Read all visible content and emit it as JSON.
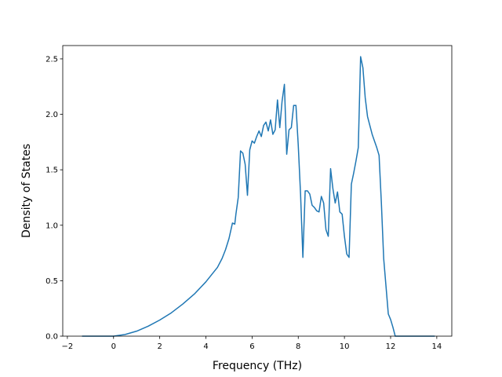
{
  "chart_data": {
    "type": "line",
    "xlabel": "Frequency (THz)",
    "ylabel": "Density of States",
    "xlim": [
      -2.2,
      14.65
    ],
    "ylim": [
      0,
      2.62
    ],
    "xticks": [
      -2,
      0,
      2,
      4,
      6,
      8,
      10,
      12,
      14
    ],
    "xtick_labels": [
      "−2",
      "0",
      "2",
      "4",
      "6",
      "8",
      "10",
      "12",
      "14"
    ],
    "yticks": [
      0.0,
      0.5,
      1.0,
      1.5,
      2.0,
      2.5
    ],
    "ytick_labels": [
      "0.0",
      "0.5",
      "1.0",
      "1.5",
      "2.0",
      "2.5"
    ],
    "grid": false,
    "line_color": "#1f77b4",
    "series": [
      {
        "x": [
          -1.35,
          -0.6,
          0.0,
          0.5,
          1.0,
          1.5,
          2.0,
          2.5,
          3.0,
          3.5,
          4.0,
          4.5,
          4.7,
          4.85,
          5.0,
          5.15,
          5.25,
          5.3,
          5.4,
          5.5,
          5.6,
          5.7,
          5.8,
          5.9,
          6.0,
          6.1,
          6.2,
          6.3,
          6.4,
          6.5,
          6.6,
          6.7,
          6.8,
          6.9,
          7.0,
          7.1,
          7.2,
          7.3,
          7.4,
          7.5,
          7.6,
          7.7,
          7.8,
          7.9,
          8.0,
          8.1,
          8.2,
          8.3,
          8.4,
          8.5,
          8.6,
          8.7,
          8.8,
          8.9,
          9.0,
          9.1,
          9.2,
          9.3,
          9.4,
          9.5,
          9.6,
          9.7,
          9.8,
          9.9,
          10.0,
          10.1,
          10.2,
          10.3,
          10.4,
          10.5,
          10.6,
          10.7,
          10.8,
          10.9,
          11.0,
          11.1,
          11.2,
          11.3,
          11.4,
          11.5,
          11.6,
          11.7,
          11.8,
          11.9,
          12.0,
          12.1,
          12.2,
          12.3,
          12.4,
          12.5,
          12.65,
          12.8,
          13.3,
          13.9
        ],
        "y": [
          0.0,
          0.0,
          0.0,
          0.015,
          0.045,
          0.09,
          0.145,
          0.21,
          0.29,
          0.38,
          0.49,
          0.62,
          0.7,
          0.78,
          0.88,
          1.02,
          1.01,
          1.1,
          1.25,
          1.67,
          1.65,
          1.55,
          1.27,
          1.68,
          1.76,
          1.74,
          1.8,
          1.85,
          1.8,
          1.9,
          1.93,
          1.85,
          1.95,
          1.82,
          1.86,
          2.13,
          1.88,
          2.12,
          2.27,
          1.64,
          1.86,
          1.88,
          2.08,
          2.08,
          1.72,
          1.28,
          0.71,
          1.31,
          1.31,
          1.28,
          1.18,
          1.16,
          1.13,
          1.12,
          1.26,
          1.2,
          0.96,
          0.9,
          1.51,
          1.33,
          1.2,
          1.3,
          1.12,
          1.1,
          0.9,
          0.74,
          0.71,
          1.37,
          1.47,
          1.58,
          1.7,
          2.52,
          2.42,
          2.15,
          1.98,
          1.9,
          1.82,
          1.76,
          1.7,
          1.63,
          1.2,
          0.7,
          0.45,
          0.2,
          0.15,
          0.08,
          0.0,
          0.0,
          0.0,
          0.0,
          0.0,
          0.0,
          0.0,
          0.0
        ]
      }
    ]
  }
}
